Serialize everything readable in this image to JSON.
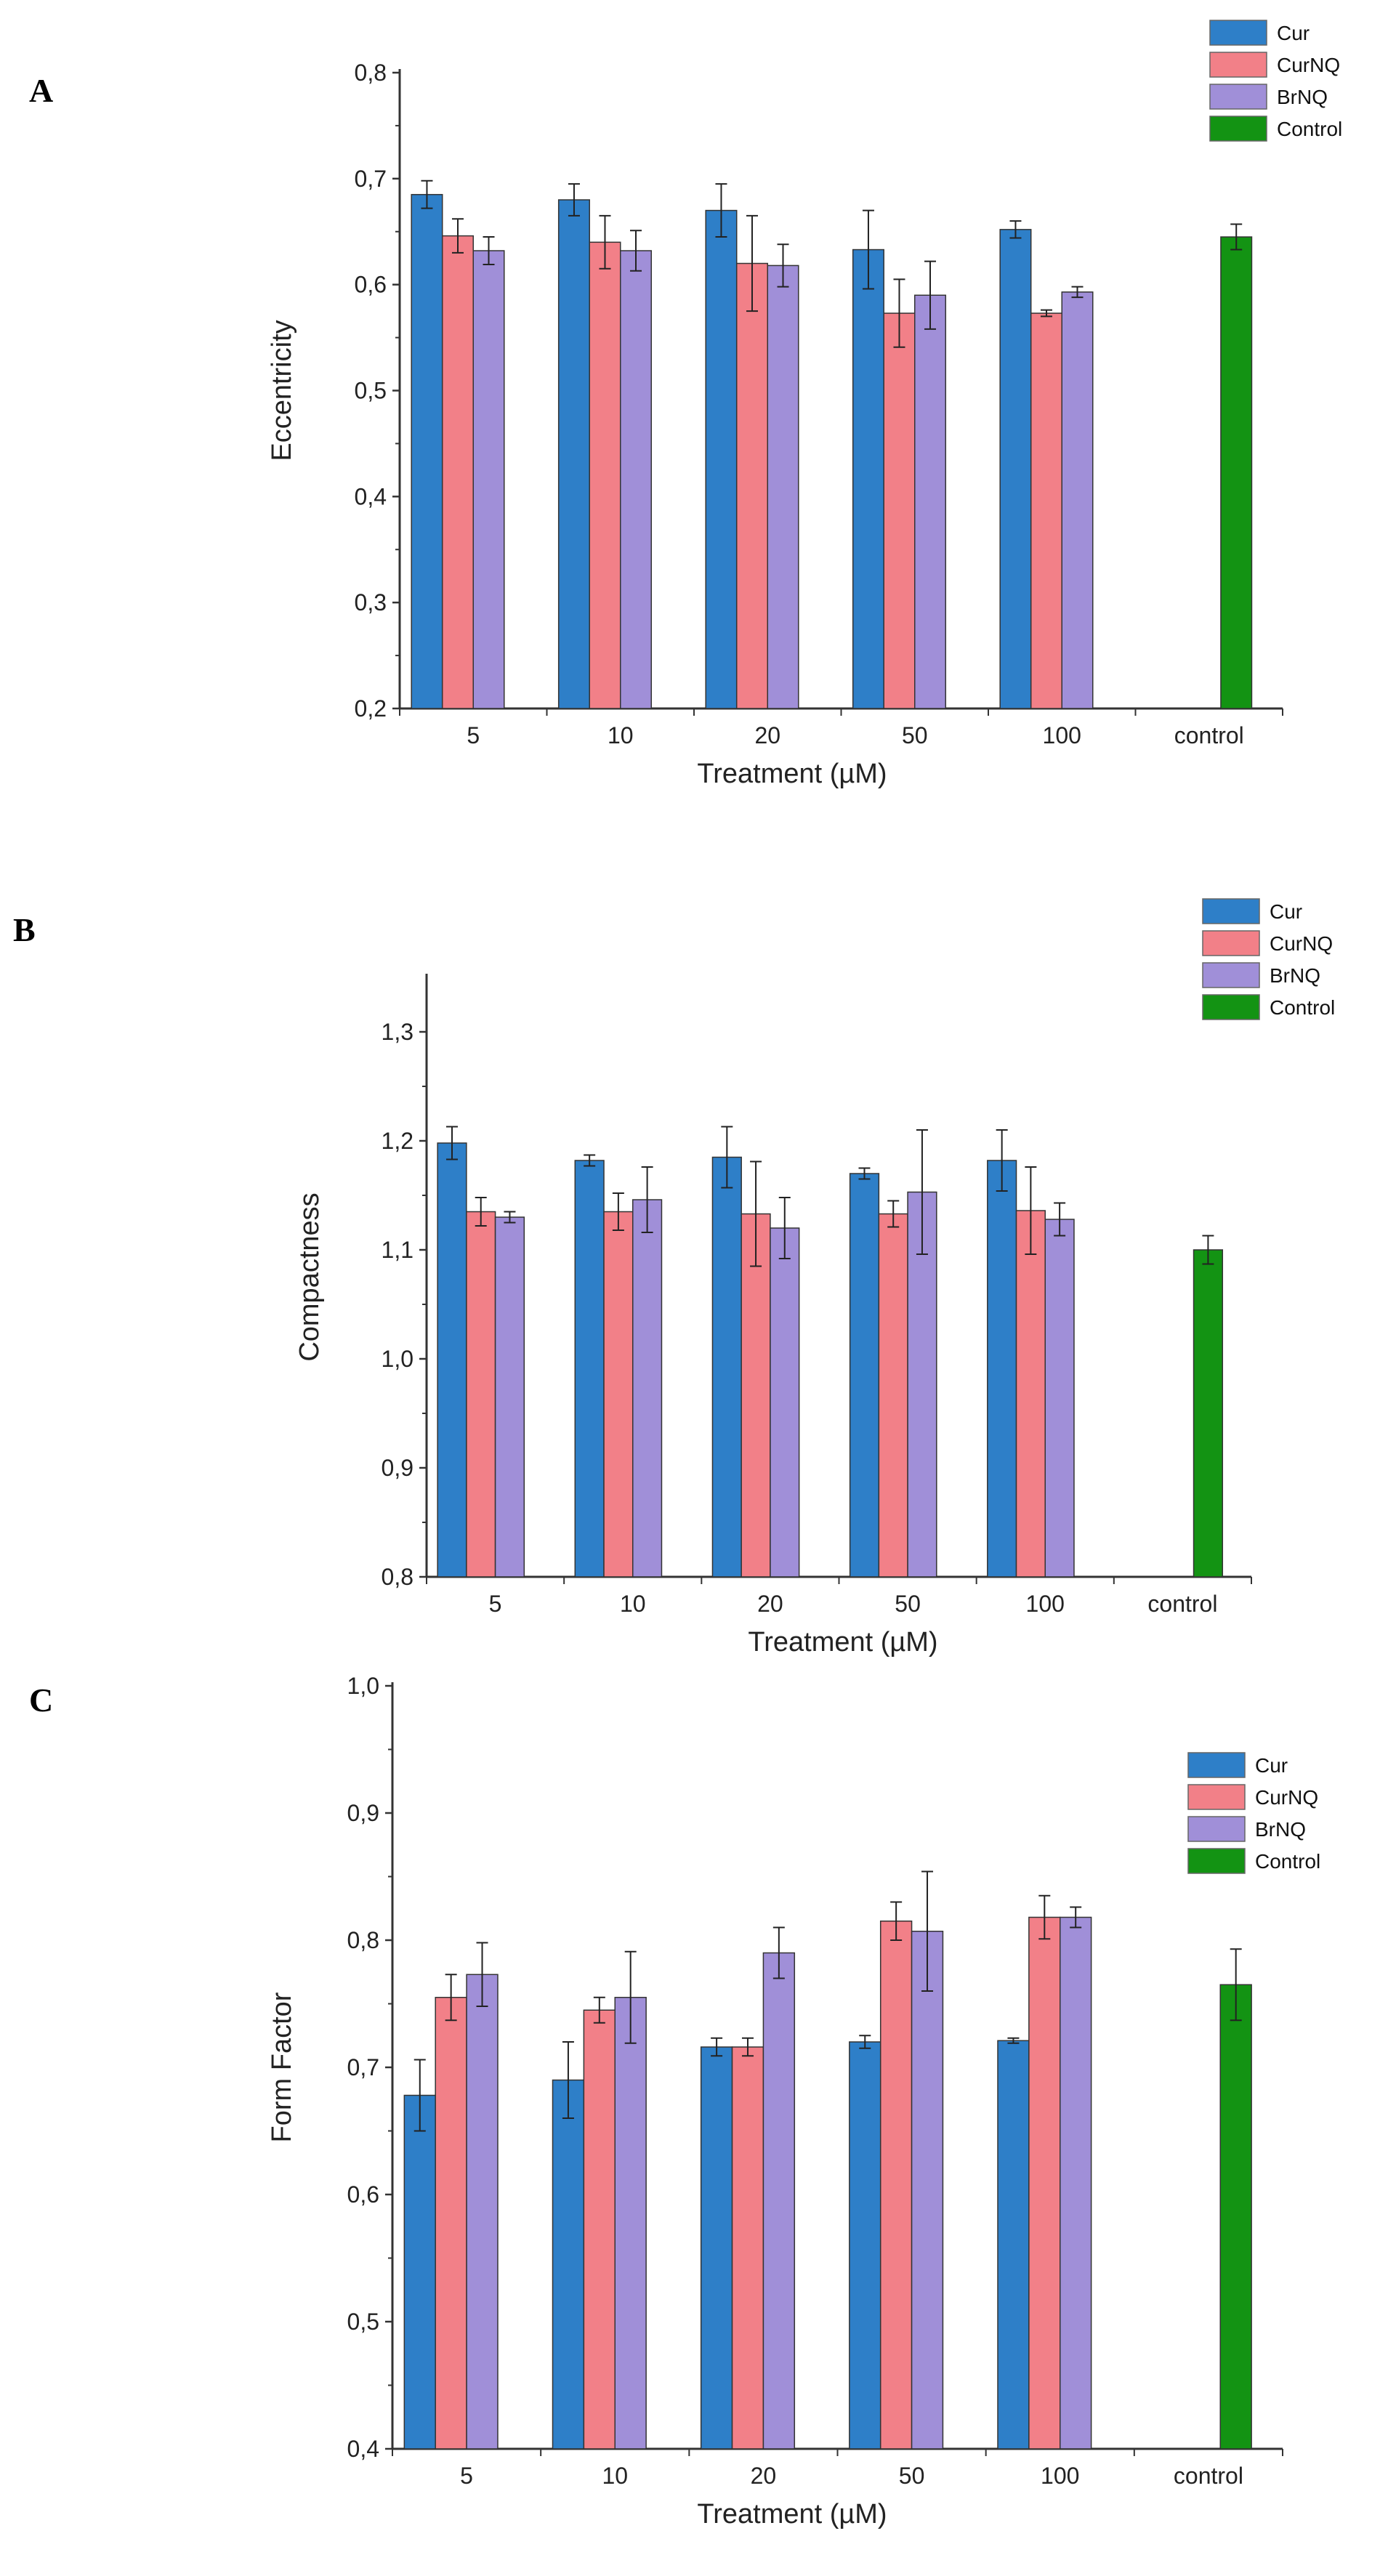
{
  "colors": {
    "Cur": "#2e7fc8",
    "CurNQ": "#f28088",
    "BrNQ": "#a08fd8",
    "Control": "#139313"
  },
  "chart_data": [
    {
      "panel": "A",
      "type": "bar",
      "xlabel": "Treatment (µM)",
      "ylabel": "Eccentricity",
      "categories": [
        "5",
        "10",
        "20",
        "50",
        "100",
        "control"
      ],
      "ylim": [
        0.2,
        0.8
      ],
      "yticks": [
        "0,2",
        "0,3",
        "0,4",
        "0,5",
        "0,6",
        "0,7",
        "0,8"
      ],
      "legend": [
        "Cur",
        "CurNQ",
        "BrNQ",
        "Control"
      ],
      "series": [
        {
          "name": "Cur",
          "values": [
            0.685,
            0.68,
            0.67,
            0.633,
            0.652,
            null
          ],
          "errors": [
            0.013,
            0.015,
            0.025,
            0.037,
            0.008,
            null
          ]
        },
        {
          "name": "CurNQ",
          "values": [
            0.646,
            0.64,
            0.62,
            0.573,
            0.573,
            null
          ],
          "errors": [
            0.016,
            0.025,
            0.045,
            0.032,
            0.003,
            null
          ]
        },
        {
          "name": "BrNQ",
          "values": [
            0.632,
            0.632,
            0.618,
            0.59,
            0.593,
            null
          ],
          "errors": [
            0.013,
            0.019,
            0.02,
            0.032,
            0.005,
            null
          ]
        },
        {
          "name": "Control",
          "values": [
            null,
            null,
            null,
            null,
            null,
            0.645
          ],
          "errors": [
            null,
            null,
            null,
            null,
            null,
            0.012
          ]
        }
      ]
    },
    {
      "panel": "B",
      "type": "bar",
      "xlabel": "Treatment (µM)",
      "ylabel": "Compactness",
      "categories": [
        "5",
        "10",
        "20",
        "50",
        "100",
        "control"
      ],
      "ylim": [
        0.8,
        1.35
      ],
      "yticks": [
        "0,8",
        "0,9",
        "1,0",
        "1,1",
        "1,2",
        "1,3"
      ],
      "legend": [
        "Cur",
        "CurNQ",
        "BrNQ",
        "Control"
      ],
      "series": [
        {
          "name": "Cur",
          "values": [
            1.198,
            1.182,
            1.185,
            1.17,
            1.182,
            null
          ],
          "errors": [
            0.015,
            0.005,
            0.028,
            0.005,
            0.028,
            null
          ]
        },
        {
          "name": "CurNQ",
          "values": [
            1.135,
            1.135,
            1.133,
            1.133,
            1.136,
            null
          ],
          "errors": [
            0.013,
            0.017,
            0.048,
            0.012,
            0.04,
            null
          ]
        },
        {
          "name": "BrNQ",
          "values": [
            1.13,
            1.146,
            1.12,
            1.153,
            1.128,
            null
          ],
          "errors": [
            0.005,
            0.03,
            0.028,
            0.057,
            0.015,
            null
          ]
        },
        {
          "name": "Control",
          "values": [
            null,
            null,
            null,
            null,
            null,
            1.1
          ],
          "errors": [
            null,
            null,
            null,
            null,
            null,
            0.013
          ]
        }
      ]
    },
    {
      "panel": "C",
      "type": "bar",
      "xlabel": "Treatment (µM)",
      "ylabel": "Form Factor",
      "categories": [
        "5",
        "10",
        "20",
        "50",
        "100",
        "control"
      ],
      "ylim": [
        0.4,
        1.0
      ],
      "yticks": [
        "0,4",
        "0,5",
        "0,6",
        "0,7",
        "0,8",
        "0,9",
        "1,0"
      ],
      "legend": [
        "Cur",
        "CurNQ",
        "BrNQ",
        "Control"
      ],
      "series": [
        {
          "name": "Cur",
          "values": [
            0.678,
            0.69,
            0.716,
            0.72,
            0.721,
            null
          ],
          "errors": [
            0.028,
            0.03,
            0.007,
            0.005,
            0.002,
            null
          ]
        },
        {
          "name": "CurNQ",
          "values": [
            0.755,
            0.745,
            0.716,
            0.815,
            0.818,
            null
          ],
          "errors": [
            0.018,
            0.01,
            0.007,
            0.015,
            0.017,
            null
          ]
        },
        {
          "name": "BrNQ",
          "values": [
            0.773,
            0.755,
            0.79,
            0.807,
            0.818,
            null
          ],
          "errors": [
            0.025,
            0.036,
            0.02,
            0.047,
            0.008,
            null
          ]
        },
        {
          "name": "Control",
          "values": [
            null,
            null,
            null,
            null,
            null,
            0.765
          ],
          "errors": [
            null,
            null,
            null,
            null,
            null,
            0.028
          ]
        }
      ]
    }
  ]
}
